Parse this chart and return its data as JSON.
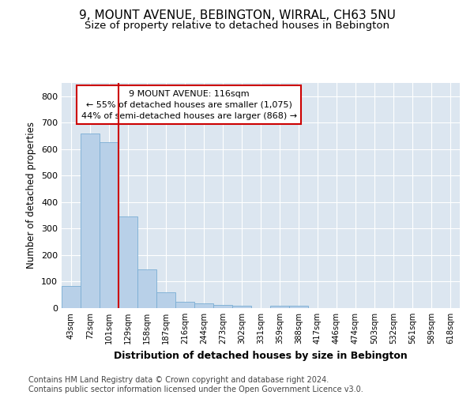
{
  "title1": "9, MOUNT AVENUE, BEBINGTON, WIRRAL, CH63 5NU",
  "title2": "Size of property relative to detached houses in Bebington",
  "xlabel": "Distribution of detached houses by size in Bebington",
  "ylabel": "Number of detached properties",
  "categories": [
    "43sqm",
    "72sqm",
    "101sqm",
    "129sqm",
    "158sqm",
    "187sqm",
    "216sqm",
    "244sqm",
    "273sqm",
    "302sqm",
    "331sqm",
    "359sqm",
    "388sqm",
    "417sqm",
    "446sqm",
    "474sqm",
    "503sqm",
    "532sqm",
    "561sqm",
    "589sqm",
    "618sqm"
  ],
  "values": [
    83,
    658,
    625,
    345,
    145,
    60,
    25,
    18,
    12,
    8,
    0,
    8,
    8,
    0,
    0,
    0,
    0,
    0,
    0,
    0,
    0
  ],
  "bar_color": "#b8d0e8",
  "bar_edge_color": "#7aadd4",
  "vline_x_index": 2,
  "vline_color": "#cc0000",
  "annotation_text": "9 MOUNT AVENUE: 116sqm\n← 55% of detached houses are smaller (1,075)\n44% of semi-detached houses are larger (868) →",
  "ylim": [
    0,
    850
  ],
  "yticks": [
    0,
    100,
    200,
    300,
    400,
    500,
    600,
    700,
    800
  ],
  "bg_color": "#ffffff",
  "plot_bg_color": "#dce6f0",
  "grid_color": "#ffffff",
  "footer": "Contains HM Land Registry data © Crown copyright and database right 2024.\nContains public sector information licensed under the Open Government Licence v3.0.",
  "title1_fontsize": 11,
  "title2_fontsize": 9.5,
  "xlabel_fontsize": 9,
  "ylabel_fontsize": 8.5,
  "footer_fontsize": 7,
  "tick_fontsize": 8,
  "ann_fontsize": 8
}
